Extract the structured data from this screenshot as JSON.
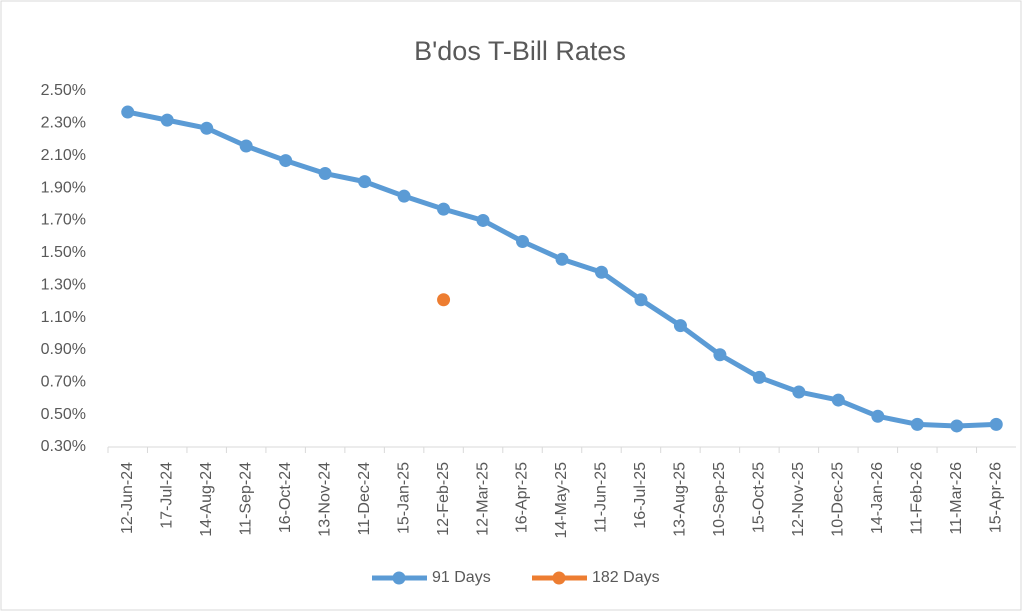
{
  "chart_data": {
    "type": "line",
    "title": "B'dos T-Bill Rates",
    "categories": [
      "12-Jun-24",
      "17-Jul-24",
      "14-Aug-24",
      "11-Sep-24",
      "16-Oct-24",
      "13-Nov-24",
      "11-Dec-24",
      "15-Jan-25",
      "12-Feb-25",
      "12-Mar-25",
      "16-Apr-25",
      "14-May-25",
      "11-Jun-25",
      "16-Jul-25",
      "13-Aug-25",
      "10-Sep-25",
      "15-Oct-25",
      "12-Nov-25",
      "10-Dec-25",
      "14-Jan-26",
      "11-Feb-26",
      "11-Mar-26",
      "15-Apr-26"
    ],
    "series": [
      {
        "name": "91 Days",
        "color": "#5b9bd5",
        "values": [
          2.37,
          2.32,
          2.27,
          2.16,
          2.07,
          1.99,
          1.94,
          1.85,
          1.77,
          1.7,
          1.57,
          1.46,
          1.38,
          1.21,
          1.05,
          0.87,
          0.73,
          0.64,
          0.59,
          0.49,
          0.44,
          0.43,
          0.44
        ]
      },
      {
        "name": "182 Days",
        "color": "#ed7d31",
        "values": [
          null,
          null,
          null,
          null,
          null,
          null,
          null,
          null,
          1.21,
          null,
          null,
          null,
          null,
          null,
          null,
          null,
          null,
          null,
          null,
          null,
          null,
          null,
          null
        ]
      }
    ],
    "ylim": [
      0.3,
      2.5
    ],
    "yticks": [
      {
        "value": 0.3,
        "label": "0.30%"
      },
      {
        "value": 0.5,
        "label": "0.50%"
      },
      {
        "value": 0.7,
        "label": "0.70%"
      },
      {
        "value": 0.9,
        "label": "0.90%"
      },
      {
        "value": 1.1,
        "label": "1.10%"
      },
      {
        "value": 1.3,
        "label": "1.30%"
      },
      {
        "value": 1.5,
        "label": "1.50%"
      },
      {
        "value": 1.7,
        "label": "1.70%"
      },
      {
        "value": 1.9,
        "label": "1.90%"
      },
      {
        "value": 2.1,
        "label": "2.10%"
      },
      {
        "value": 2.3,
        "label": "2.30%"
      },
      {
        "value": 2.5,
        "label": "2.50%"
      }
    ],
    "grid": false,
    "legend": "bottom"
  }
}
